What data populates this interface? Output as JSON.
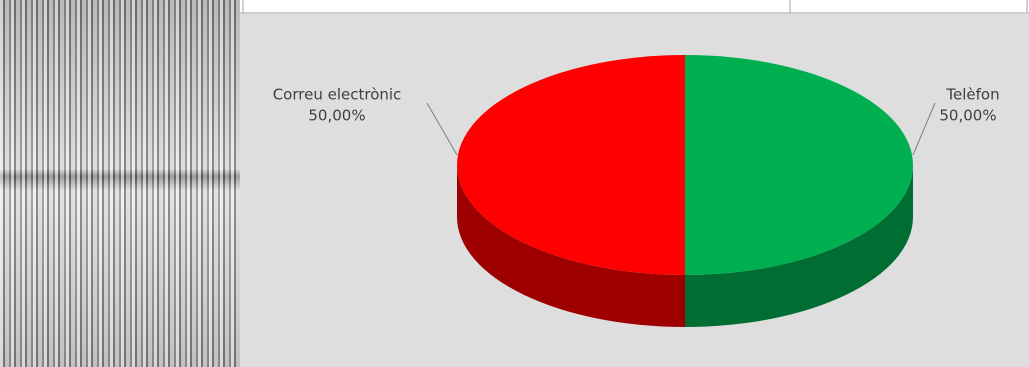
{
  "chart_data": {
    "type": "pie",
    "categories": [
      "Telèfon",
      "Correu electrònic"
    ],
    "values": [
      50,
      50
    ],
    "value_labels": [
      "50,00%",
      "50,00%"
    ],
    "colors": [
      "#00b050",
      "#ff0000"
    ]
  }
}
